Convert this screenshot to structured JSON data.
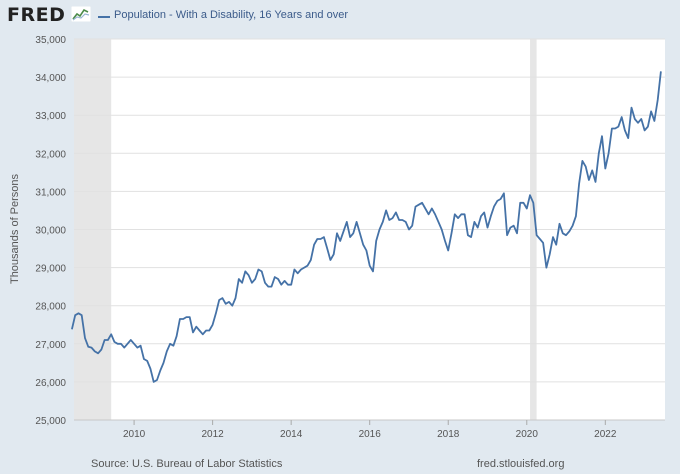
{
  "header": {
    "logo_text": "FRED",
    "logo_icon": "line-chart-icon",
    "legend_label": "Population - With a Disability, 16 Years and over"
  },
  "colors": {
    "background": "#e1e9f0",
    "plot_background": "#ffffff",
    "series": "#4572a7",
    "recession": "#e6e6e6",
    "grid": "#e1e1e1"
  },
  "footer": {
    "source": "Source: U.S. Bureau of Labor Statistics",
    "site": "fred.stlouisfed.org"
  },
  "chart_data": {
    "type": "line",
    "title": "",
    "xlabel": "",
    "ylabel": "Thousands of Persons",
    "ylim": [
      25000,
      35000
    ],
    "xlim": [
      2008.47,
      2023.52
    ],
    "grid": "horizontal",
    "legend": "top-left",
    "x_ticks": [
      2010,
      2012,
      2014,
      2016,
      2018,
      2020,
      2022
    ],
    "x_tick_labels": [
      "2010",
      "2012",
      "2014",
      "2016",
      "2018",
      "2020",
      "2022"
    ],
    "y_ticks": [
      25000,
      26000,
      27000,
      28000,
      29000,
      30000,
      31000,
      32000,
      33000,
      34000,
      35000
    ],
    "y_tick_labels": [
      "25,000",
      "26,000",
      "27,000",
      "28,000",
      "29,000",
      "30,000",
      "31,000",
      "32,000",
      "33,000",
      "34,000",
      "35,000"
    ],
    "recessions": [
      {
        "start": "2008-06",
        "end": "2009-06"
      },
      {
        "start": "2020-02",
        "end": "2020-04"
      }
    ],
    "series": [
      {
        "name": "Population - With a Disability, 16 Years and over",
        "x": [
          "2008-06",
          "2008-07",
          "2008-08",
          "2008-09",
          "2008-10",
          "2008-11",
          "2008-12",
          "2009-01",
          "2009-02",
          "2009-03",
          "2009-04",
          "2009-05",
          "2009-06",
          "2009-07",
          "2009-08",
          "2009-09",
          "2009-10",
          "2009-11",
          "2009-12",
          "2010-01",
          "2010-02",
          "2010-03",
          "2010-04",
          "2010-05",
          "2010-06",
          "2010-07",
          "2010-08",
          "2010-09",
          "2010-10",
          "2010-11",
          "2010-12",
          "2011-01",
          "2011-02",
          "2011-03",
          "2011-04",
          "2011-05",
          "2011-06",
          "2011-07",
          "2011-08",
          "2011-09",
          "2011-10",
          "2011-11",
          "2011-12",
          "2012-01",
          "2012-02",
          "2012-03",
          "2012-04",
          "2012-05",
          "2012-06",
          "2012-07",
          "2012-08",
          "2012-09",
          "2012-10",
          "2012-11",
          "2012-12",
          "2013-01",
          "2013-02",
          "2013-03",
          "2013-04",
          "2013-05",
          "2013-06",
          "2013-07",
          "2013-08",
          "2013-09",
          "2013-10",
          "2013-11",
          "2013-12",
          "2014-01",
          "2014-02",
          "2014-03",
          "2014-04",
          "2014-05",
          "2014-06",
          "2014-07",
          "2014-08",
          "2014-09",
          "2014-10",
          "2014-11",
          "2014-12",
          "2015-01",
          "2015-02",
          "2015-03",
          "2015-04",
          "2015-05",
          "2015-06",
          "2015-07",
          "2015-08",
          "2015-09",
          "2015-10",
          "2015-11",
          "2015-12",
          "2016-01",
          "2016-02",
          "2016-03",
          "2016-04",
          "2016-05",
          "2016-06",
          "2016-07",
          "2016-08",
          "2016-09",
          "2016-10",
          "2016-11",
          "2016-12",
          "2017-01",
          "2017-02",
          "2017-03",
          "2017-04",
          "2017-05",
          "2017-06",
          "2017-07",
          "2017-08",
          "2017-09",
          "2017-10",
          "2017-11",
          "2017-12",
          "2018-01",
          "2018-02",
          "2018-03",
          "2018-04",
          "2018-05",
          "2018-06",
          "2018-07",
          "2018-08",
          "2018-09",
          "2018-10",
          "2018-11",
          "2018-12",
          "2019-01",
          "2019-02",
          "2019-03",
          "2019-04",
          "2019-05",
          "2019-06",
          "2019-07",
          "2019-08",
          "2019-09",
          "2019-10",
          "2019-11",
          "2019-12",
          "2020-01",
          "2020-02",
          "2020-03",
          "2020-04",
          "2020-05",
          "2020-06",
          "2020-07",
          "2020-08",
          "2020-09",
          "2020-10",
          "2020-11",
          "2020-12",
          "2021-01",
          "2021-02",
          "2021-03",
          "2021-04",
          "2021-05",
          "2021-06",
          "2021-07",
          "2021-08",
          "2021-09",
          "2021-10",
          "2021-11",
          "2021-12",
          "2022-01",
          "2022-02",
          "2022-03",
          "2022-04",
          "2022-05",
          "2022-06",
          "2022-07",
          "2022-08",
          "2022-09",
          "2022-10",
          "2022-11",
          "2022-12",
          "2023-01",
          "2023-02",
          "2023-03",
          "2023-04",
          "2023-05",
          "2023-06"
        ],
        "values": [
          27380,
          27750,
          27800,
          27750,
          27150,
          26920,
          26900,
          26800,
          26750,
          26850,
          27100,
          27100,
          27250,
          27050,
          27000,
          27000,
          26900,
          27000,
          27100,
          27000,
          26900,
          26950,
          26600,
          26550,
          26350,
          26000,
          26050,
          26300,
          26500,
          26800,
          27000,
          26950,
          27200,
          27650,
          27650,
          27700,
          27700,
          27300,
          27450,
          27350,
          27250,
          27350,
          27350,
          27500,
          27800,
          28150,
          28200,
          28050,
          28100,
          28000,
          28200,
          28700,
          28600,
          28900,
          28800,
          28600,
          28700,
          28950,
          28900,
          28600,
          28500,
          28500,
          28750,
          28700,
          28550,
          28650,
          28550,
          28550,
          28950,
          28850,
          28950,
          29000,
          29050,
          29200,
          29600,
          29750,
          29750,
          29800,
          29500,
          29200,
          29350,
          29900,
          29700,
          29950,
          30200,
          29800,
          29900,
          30200,
          29900,
          29600,
          29450,
          29050,
          28900,
          29700,
          30000,
          30200,
          30500,
          30250,
          30300,
          30450,
          30250,
          30250,
          30200,
          30000,
          30100,
          30600,
          30650,
          30700,
          30550,
          30400,
          30550,
          30400,
          30200,
          30000,
          29700,
          29450,
          29900,
          30400,
          30300,
          30400,
          30400,
          29850,
          29800,
          30200,
          30050,
          30350,
          30450,
          30050,
          30350,
          30600,
          30750,
          30800,
          30950,
          29850,
          30050,
          30100,
          29900,
          30700,
          30700,
          30550,
          30900,
          30700,
          29850,
          29750,
          29650,
          29000,
          29350,
          29800,
          29600,
          30150,
          29900,
          29850,
          29950,
          30100,
          30350,
          31200,
          31800,
          31650,
          31300,
          31550,
          31250,
          32000,
          32450,
          31600,
          32000,
          32650,
          32650,
          32700,
          32950,
          32600,
          32400,
          33200,
          32900,
          32800,
          32900,
          32600,
          32700,
          33100,
          32850,
          33400,
          34150
        ]
      }
    ]
  }
}
